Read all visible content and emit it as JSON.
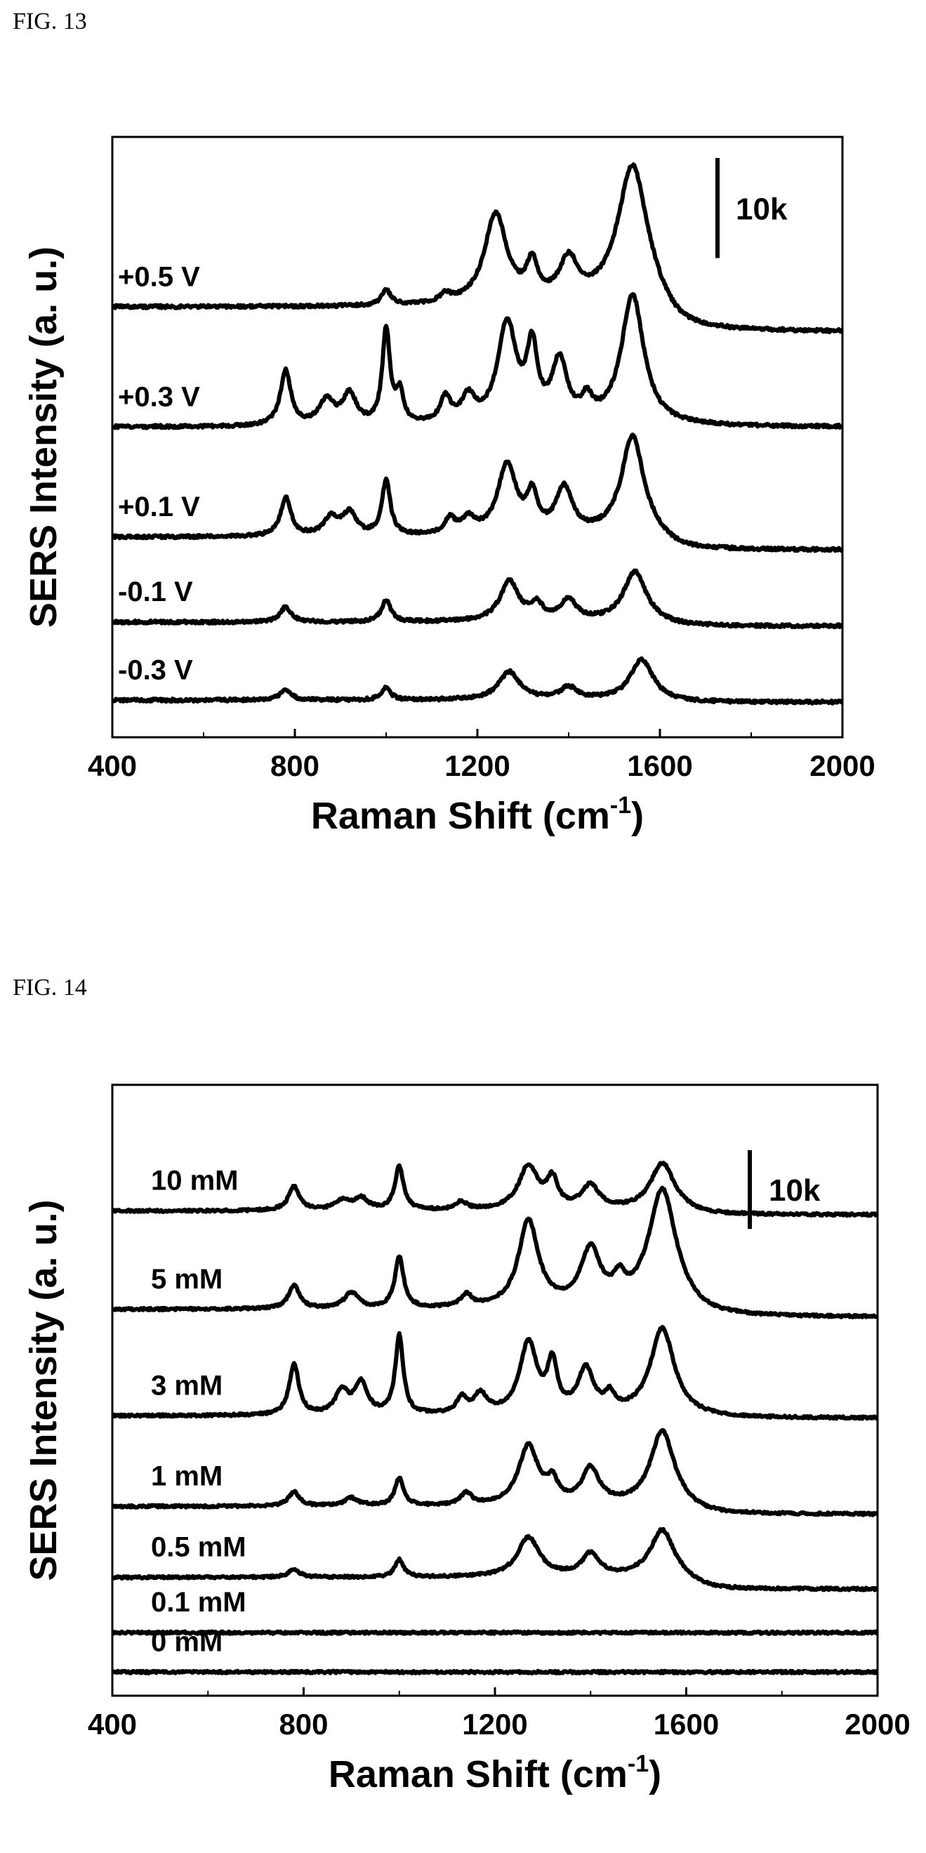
{
  "figures": [
    {
      "id": "fig13",
      "label": "FIG. 13"
    },
    {
      "id": "fig14",
      "label": "FIG. 14"
    }
  ],
  "chart_data": [
    {
      "type": "line",
      "figure": "FIG. 13",
      "xlabel": "Raman Shift (cm-1)",
      "xlabel_main": "Raman Shift (cm",
      "xlabel_sup": "-1",
      "xlabel_close": ")",
      "ylabel": "SERS Intensity (a. u.)",
      "xlim": [
        400,
        2000
      ],
      "xticks": [
        400,
        800,
        1200,
        1600,
        2000
      ],
      "xtick_labels": [
        "400",
        "800",
        "1200",
        "1600",
        "2000"
      ],
      "y_ticks_shown": false,
      "grid": false,
      "scale_bar": {
        "label": "10k",
        "value": 10000
      },
      "series": [
        {
          "name": "+0.5 V",
          "baseline": 41000,
          "tail": -2500,
          "peaks": [
            [
              1000,
              1500,
              12
            ],
            [
              1130,
              800,
              14
            ],
            [
              1240,
              9000,
              30
            ],
            [
              1320,
              3500,
              15
            ],
            [
              1400,
              4000,
              25
            ],
            [
              1540,
              14000,
              40
            ]
          ]
        },
        {
          "name": "+0.3 V",
          "baseline": 29000,
          "tail": 0,
          "peaks": [
            [
              780,
              5500,
              14
            ],
            [
              870,
              2500,
              20
            ],
            [
              920,
              3000,
              18
            ],
            [
              1000,
              9500,
              10
            ],
            [
              1030,
              3000,
              10
            ],
            [
              1130,
              2500,
              14
            ],
            [
              1180,
              2500,
              18
            ],
            [
              1265,
              10000,
              25
            ],
            [
              1320,
              7000,
              14
            ],
            [
              1380,
              6000,
              20
            ],
            [
              1440,
              2000,
              14
            ],
            [
              1540,
              13000,
              30
            ]
          ]
        },
        {
          "name": "+0.1 V",
          "baseline": 18000,
          "tail": -1300,
          "peaks": [
            [
              780,
              3800,
              14
            ],
            [
              880,
              1800,
              20
            ],
            [
              920,
              2200,
              18
            ],
            [
              1000,
              5500,
              11
            ],
            [
              1140,
              1500,
              14
            ],
            [
              1180,
              1500,
              18
            ],
            [
              1265,
              7000,
              25
            ],
            [
              1320,
              3500,
              14
            ],
            [
              1390,
              4500,
              22
            ],
            [
              1540,
              10000,
              30
            ]
          ]
        },
        {
          "name": "-0.1 V",
          "baseline": 9500,
          "tail": -400,
          "peaks": [
            [
              780,
              1500,
              15
            ],
            [
              1000,
              2200,
              12
            ],
            [
              1270,
              4000,
              25
            ],
            [
              1330,
              1500,
              16
            ],
            [
              1400,
              2000,
              22
            ],
            [
              1545,
              5000,
              30
            ]
          ]
        },
        {
          "name": "-0.3 V",
          "baseline": 1700,
          "tail": -200,
          "peaks": [
            [
              780,
              1000,
              15
            ],
            [
              1000,
              1200,
              12
            ],
            [
              1270,
              2800,
              28
            ],
            [
              1400,
              1200,
              22
            ],
            [
              1560,
              4000,
              30
            ]
          ]
        }
      ]
    },
    {
      "type": "line",
      "figure": "FIG. 14",
      "xlabel": "Raman Shift (cm-1)",
      "xlabel_main": "Raman Shift (cm",
      "xlabel_sup": "-1",
      "xlabel_close": ")",
      "ylabel": "SERS Intensity (a. u.)",
      "xlim": [
        400,
        2000
      ],
      "xticks": [
        400,
        800,
        1200,
        1600,
        2000
      ],
      "xtick_labels": [
        "400",
        "800",
        "1200",
        "1600",
        "2000"
      ],
      "y_ticks_shown": false,
      "grid": false,
      "scale_bar": {
        "label": "10k",
        "value": 10000
      },
      "series": [
        {
          "name": "10 mM",
          "baseline": 55000,
          "tail": -500,
          "peaks": [
            [
              780,
              3000,
              14
            ],
            [
              880,
              1200,
              18
            ],
            [
              920,
              1500,
              18
            ],
            [
              1000,
              5500,
              11
            ],
            [
              1130,
              1000,
              14
            ],
            [
              1270,
              5500,
              25
            ],
            [
              1320,
              3500,
              14
            ],
            [
              1400,
              3000,
              22
            ],
            [
              1550,
              6000,
              30
            ]
          ]
        },
        {
          "name": "5 mM",
          "baseline": 42500,
          "tail": -1000,
          "peaks": [
            [
              780,
              3000,
              14
            ],
            [
              900,
              2000,
              18
            ],
            [
              1000,
              6500,
              11
            ],
            [
              1140,
              1500,
              14
            ],
            [
              1270,
              11000,
              25
            ],
            [
              1400,
              7000,
              25
            ],
            [
              1460,
              2500,
              14
            ],
            [
              1550,
              15000,
              35
            ]
          ]
        },
        {
          "name": "3 mM",
          "baseline": 29000,
          "tail": -300,
          "peaks": [
            [
              780,
              6500,
              12
            ],
            [
              880,
              3000,
              16
            ],
            [
              920,
              4000,
              16
            ],
            [
              1000,
              10000,
              10
            ],
            [
              1130,
              2000,
              12
            ],
            [
              1170,
              2500,
              16
            ],
            [
              1270,
              9000,
              22
            ],
            [
              1320,
              6000,
              12
            ],
            [
              1390,
              5500,
              20
            ],
            [
              1440,
              2000,
              12
            ],
            [
              1550,
              11000,
              30
            ]
          ]
        },
        {
          "name": "1 mM",
          "baseline": 17500,
          "tail": -1000,
          "peaks": [
            [
              780,
              1800,
              14
            ],
            [
              900,
              1000,
              18
            ],
            [
              1000,
              3500,
              11
            ],
            [
              1140,
              1500,
              14
            ],
            [
              1270,
              7500,
              25
            ],
            [
              1320,
              2500,
              14
            ],
            [
              1400,
              4500,
              22
            ],
            [
              1550,
              9500,
              30
            ]
          ]
        },
        {
          "name": "0.5 mM",
          "baseline": 8500,
          "tail": -1500,
          "peaks": [
            [
              780,
              1000,
              14
            ],
            [
              1000,
              2200,
              11
            ],
            [
              1270,
              5000,
              28
            ],
            [
              1400,
              2800,
              22
            ],
            [
              1550,
              6000,
              30
            ]
          ]
        },
        {
          "name": "0.1 mM",
          "baseline": 1500,
          "tail": 0,
          "peaks": []
        },
        {
          "name": "0 mM",
          "baseline": -3500,
          "tail": 0,
          "peaks": []
        }
      ]
    }
  ]
}
